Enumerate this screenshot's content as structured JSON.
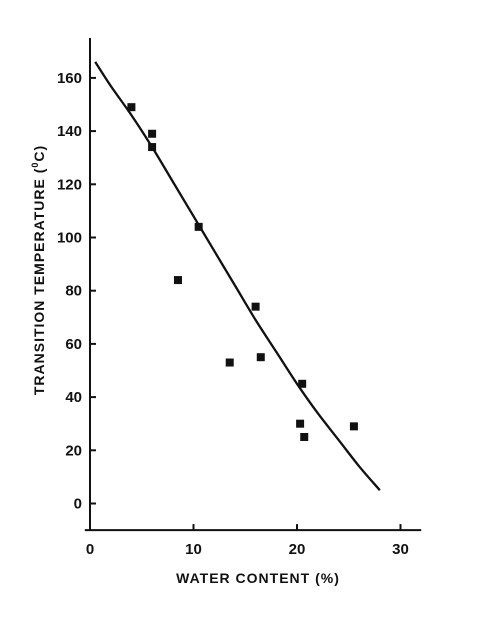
{
  "chart_data": {
    "type": "scatter",
    "title": "",
    "xlabel": "WATER CONTENT (%)",
    "ylabel": "TRANSITION TEMPERATURE (",
    "ylabel_sup": "0",
    "ylabel_unit": "C)",
    "xlim": [
      -0.5,
      32
    ],
    "ylim": [
      -10,
      175
    ],
    "x_ticks": [
      0,
      10,
      20,
      30
    ],
    "y_ticks": [
      0,
      20,
      40,
      60,
      80,
      100,
      120,
      140,
      160
    ],
    "grid": false,
    "legend": "none",
    "points": [
      {
        "x": 4,
        "y": 149
      },
      {
        "x": 6,
        "y": 139
      },
      {
        "x": 6,
        "y": 134
      },
      {
        "x": 8.5,
        "y": 84
      },
      {
        "x": 10.5,
        "y": 104
      },
      {
        "x": 13.5,
        "y": 53
      },
      {
        "x": 16,
        "y": 74
      },
      {
        "x": 16.5,
        "y": 55
      },
      {
        "x": 20.3,
        "y": 30
      },
      {
        "x": 20.5,
        "y": 45
      },
      {
        "x": 20.7,
        "y": 25
      },
      {
        "x": 25.5,
        "y": 29
      }
    ],
    "fit_curve": [
      {
        "x": 0.5,
        "y": 166
      },
      {
        "x": 2,
        "y": 157
      },
      {
        "x": 4,
        "y": 146
      },
      {
        "x": 6,
        "y": 134
      },
      {
        "x": 8,
        "y": 121
      },
      {
        "x": 10,
        "y": 108
      },
      {
        "x": 12,
        "y": 95
      },
      {
        "x": 14,
        "y": 82
      },
      {
        "x": 16,
        "y": 69
      },
      {
        "x": 18,
        "y": 57
      },
      {
        "x": 20,
        "y": 45
      },
      {
        "x": 22,
        "y": 34
      },
      {
        "x": 24,
        "y": 24
      },
      {
        "x": 26,
        "y": 14
      },
      {
        "x": 28,
        "y": 5
      }
    ],
    "colors": {
      "ink": "#111111",
      "background": "#ffffff"
    }
  }
}
